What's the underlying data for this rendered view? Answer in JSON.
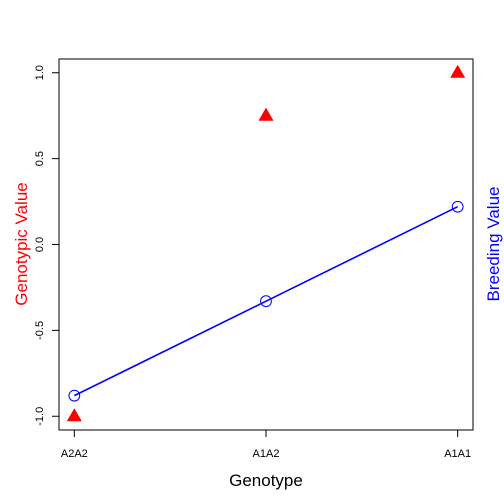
{
  "chart_data": {
    "type": "scatter",
    "title": "",
    "xlabel": "Genotype",
    "ylabel_left": "Genotypic Value",
    "ylabel_right": "Breeding Value",
    "categories": [
      "A2A2",
      "A1A2",
      "A1A1"
    ],
    "xlim": [
      0.92,
      3.08
    ],
    "ylim": [
      -1.08,
      1.08
    ],
    "yticks": [
      -1.0,
      -0.5,
      0.0,
      0.5,
      1.0
    ],
    "ytick_labels": [
      "-1.0",
      "-0.5",
      "0.0",
      "0.5",
      "1.0"
    ],
    "grid": false,
    "colors": {
      "genotypic": "#ff0000",
      "breeding": "#0000ff",
      "axes": "#000000"
    },
    "series": [
      {
        "key": "genotypic",
        "marker": "filled-triangle",
        "line": false,
        "values": [
          -1.0,
          0.75,
          1.0
        ]
      },
      {
        "key": "breeding",
        "marker": "open-circle",
        "line": true,
        "values": [
          -0.88,
          -0.33,
          0.22
        ]
      }
    ]
  }
}
